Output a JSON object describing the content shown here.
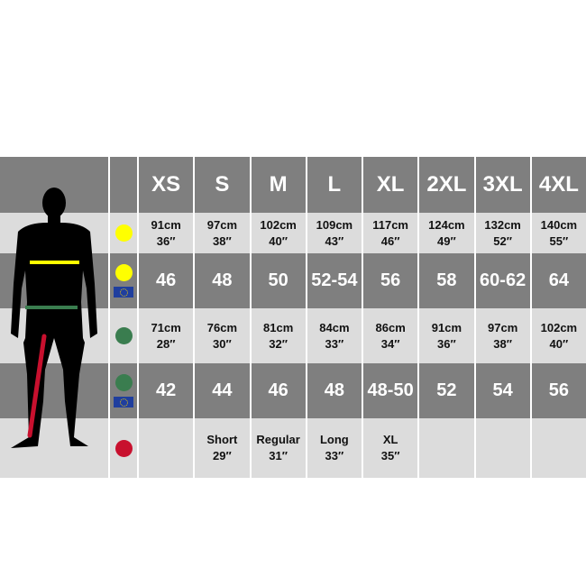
{
  "sizes": [
    "XS",
    "S",
    "M",
    "L",
    "XL",
    "2XL",
    "3XL",
    "4XL"
  ],
  "colors": {
    "chest": "#ffff00",
    "waist": "#3a7d4f",
    "leg": "#c8102e",
    "dark_row": "#7f7f7f",
    "light_row": "#dcdcdc"
  },
  "rows": [
    {
      "icon": "yellow-chest-dot",
      "eu": false,
      "values": [
        [
          "91cm",
          "36″"
        ],
        [
          "97cm",
          "38″"
        ],
        [
          "102cm",
          "40″"
        ],
        [
          "109cm",
          "43″"
        ],
        [
          "117cm",
          "46″"
        ],
        [
          "124cm",
          "49″"
        ],
        [
          "132cm",
          "52″"
        ],
        [
          "140cm",
          "55″"
        ]
      ]
    },
    {
      "icon": "yellow-chest-dot",
      "eu": true,
      "values": [
        "46",
        "48",
        "50",
        "52-54",
        "56",
        "58",
        "60-62",
        "64"
      ]
    },
    {
      "icon": "green-waist-dot",
      "eu": false,
      "values": [
        [
          "71cm",
          "28″"
        ],
        [
          "76cm",
          "30″"
        ],
        [
          "81cm",
          "32″"
        ],
        [
          "84cm",
          "33″"
        ],
        [
          "86cm",
          "34″"
        ],
        [
          "91cm",
          "36″"
        ],
        [
          "97cm",
          "38″"
        ],
        [
          "102cm",
          "40″"
        ]
      ]
    },
    {
      "icon": "green-waist-dot",
      "eu": true,
      "values": [
        "42",
        "44",
        "46",
        "48",
        "48-50",
        "52",
        "54",
        "56"
      ]
    },
    {
      "icon": "red-leg-dot",
      "eu": false,
      "values": [
        [
          "",
          ""
        ],
        [
          "Short",
          "29″"
        ],
        [
          "Regular",
          "31″"
        ],
        [
          "Long",
          "33″"
        ],
        [
          "XL",
          "35″"
        ],
        [
          "",
          ""
        ],
        [
          "",
          ""
        ],
        [
          "",
          ""
        ]
      ]
    }
  ]
}
